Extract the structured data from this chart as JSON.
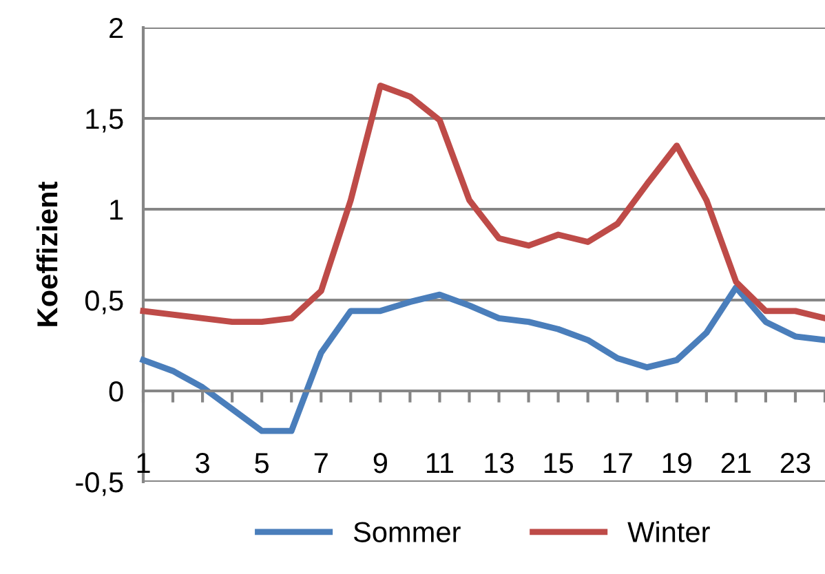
{
  "chart_data": {
    "type": "line",
    "ylabel": "Koeffizient",
    "categories": [
      "1",
      null,
      "3",
      null,
      "5",
      null,
      "7",
      null,
      "9",
      null,
      "11",
      null,
      "13",
      null,
      "15",
      null,
      "17",
      null,
      "19",
      null,
      "21",
      null,
      "23",
      null
    ],
    "series": [
      {
        "name": "Sommer",
        "color": "#4a7ebb",
        "values": [
          0.17,
          0.11,
          0.02,
          -0.1,
          -0.22,
          -0.22,
          0.21,
          0.44,
          0.44,
          0.49,
          0.53,
          0.47,
          0.4,
          0.38,
          0.34,
          0.28,
          0.18,
          0.13,
          0.17,
          0.32,
          0.57,
          0.38,
          0.3,
          0.28
        ]
      },
      {
        "name": "Winter",
        "color": "#be4b48",
        "values": [
          0.44,
          0.42,
          0.4,
          0.38,
          0.38,
          0.4,
          0.55,
          1.05,
          1.68,
          1.62,
          1.49,
          1.05,
          0.84,
          0.8,
          0.86,
          0.82,
          0.92,
          1.14,
          1.35,
          1.05,
          0.6,
          0.44,
          0.44,
          0.4
        ]
      }
    ],
    "ylim": [
      -0.5,
      2
    ],
    "yticks": [
      {
        "value": -0.5,
        "label": "-0,5"
      },
      0,
      {
        "value": 0.5,
        "label": "0,5"
      },
      1,
      {
        "value": 1.5,
        "label": "1,5"
      },
      2
    ],
    "grid": "y",
    "legend": "bottom",
    "marker": "none",
    "line_style": "solid"
  }
}
